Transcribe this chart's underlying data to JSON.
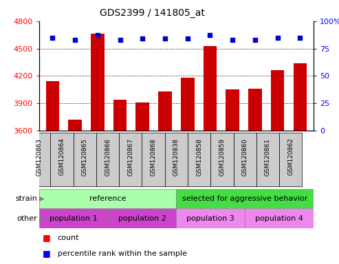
{
  "title": "GDS2399 / 141805_at",
  "samples": [
    "GSM120863",
    "GSM120864",
    "GSM120865",
    "GSM120866",
    "GSM120867",
    "GSM120868",
    "GSM120838",
    "GSM120858",
    "GSM120859",
    "GSM120860",
    "GSM120861",
    "GSM120862"
  ],
  "counts": [
    4140,
    3720,
    4660,
    3940,
    3910,
    4030,
    4180,
    4530,
    4050,
    4060,
    4260,
    4340
  ],
  "percentiles": [
    85,
    83,
    87,
    83,
    84,
    84,
    84,
    87,
    83,
    83,
    85,
    85
  ],
  "ylim_left": [
    3600,
    4800
  ],
  "ylim_right": [
    0,
    100
  ],
  "yticks_left": [
    3600,
    3900,
    4200,
    4500,
    4800
  ],
  "yticks_right": [
    0,
    25,
    50,
    75,
    100
  ],
  "bar_color": "#cc0000",
  "dot_color": "#0000cc",
  "strain_ref_color": "#aaffaa",
  "strain_sel_color": "#44dd44",
  "pop_color_light": "#ee88ee",
  "pop_color_dark": "#cc44cc",
  "tick_box_color": "#cccccc",
  "ref_split": 6,
  "pop_splits": [
    3,
    3,
    3,
    3
  ]
}
